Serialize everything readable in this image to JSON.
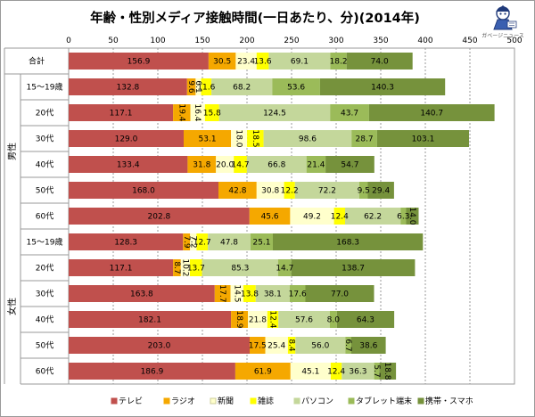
{
  "chart_data": {
    "type": "bar",
    "orientation": "horizontal",
    "stacked": true,
    "title": "年齢・性別メディア接触時間(一日あたり、分)(2014年)",
    "xlim": [
      0,
      500
    ],
    "x_ticks": [
      0,
      50,
      100,
      150,
      200,
      250,
      300,
      350,
      400,
      450,
      500
    ],
    "grid": true,
    "legend_position": "bottom",
    "groups": [
      {
        "label": "男性",
        "first_index": 1,
        "last_index": 6
      },
      {
        "label": "女性",
        "first_index": 7,
        "last_index": 12
      }
    ],
    "categories": [
      "合計",
      "15〜19歳",
      "20代",
      "30代",
      "40代",
      "50代",
      "60代",
      "15〜19歳",
      "20代",
      "30代",
      "40代",
      "50代",
      "60代"
    ],
    "series": [
      {
        "name": "テレビ",
        "color": "#c0504d",
        "values": [
          156.9,
          132.8,
          117.1,
          129.0,
          133.4,
          168.0,
          202.8,
          128.3,
          117.1,
          163.8,
          182.1,
          203.0,
          186.9
        ]
      },
      {
        "name": "ラジオ",
        "color": "#f5a800",
        "values": [
          30.5,
          9.6,
          19.4,
          53.1,
          31.8,
          42.8,
          45.6,
          7.9,
          8.7,
          17.7,
          18.9,
          17.5,
          61.9
        ]
      },
      {
        "name": "新聞",
        "color": "#ffffcc",
        "values": [
          23.4,
          6.1,
          16.4,
          18.0,
          20.0,
          30.8,
          49.2,
          7.2,
          10.2,
          14.5,
          21.8,
          25.4,
          45.1
        ]
      },
      {
        "name": "雑誌",
        "color": "#ffff00",
        "values": [
          13.6,
          11.6,
          15.8,
          18.5,
          14.7,
          12.2,
          12.4,
          12.7,
          13.7,
          13.8,
          12.4,
          8.4,
          12.4
        ]
      },
      {
        "name": "パソコン",
        "color": "#c4d79b",
        "values": [
          69.1,
          68.2,
          124.5,
          98.6,
          66.8,
          72.2,
          62.2,
          47.8,
          85.3,
          38.1,
          57.6,
          56.0,
          36.3
        ]
      },
      {
        "name": "タブレット端末",
        "color": "#9bbb59",
        "values": [
          18.2,
          53.6,
          43.7,
          28.7,
          21.4,
          9.5,
          6.3,
          25.1,
          14.7,
          17.6,
          8.0,
          6.7,
          5.7
        ]
      },
      {
        "name": "携帯・スマホ",
        "color": "#76923c",
        "values": [
          74.0,
          140.3,
          140.7,
          103.1,
          54.7,
          29.4,
          14.0,
          168.3,
          138.7,
          77.0,
          64.3,
          38.6,
          18.8
        ]
      }
    ],
    "data_labels": [
      [
        "156.9",
        "30.5",
        "23.4",
        "13.6",
        "69.1",
        "18.2",
        "74.0"
      ],
      [
        "132.8",
        "9.6",
        "6.1",
        "11.6",
        "68.2",
        "53.6",
        "140.3"
      ],
      [
        "117.1",
        "19.4",
        "16.4",
        "15.8",
        "124.5",
        "43.7",
        "140.7"
      ],
      [
        "129.0",
        "53.1",
        "18.0",
        "18.5",
        "98.6",
        "28.7",
        "103.1"
      ],
      [
        "133.4",
        "31.8",
        "20.0",
        "14.7",
        "66.8",
        "21.4",
        "54.7"
      ],
      [
        "168.0",
        "42.8",
        "30.8",
        "12.2",
        "72.2",
        "9.5",
        "29.4"
      ],
      [
        "202.8",
        "45.6",
        "49.2",
        "12.4",
        "62.2",
        "6.3",
        "14.0"
      ],
      [
        "128.3",
        "7.9",
        "7.2",
        "12.7",
        "47.8",
        "25.1",
        "168.3"
      ],
      [
        "117.1",
        "8.7",
        "10.2",
        "13.7",
        "85.3",
        "14.7",
        "138.7"
      ],
      [
        "163.8",
        "17.7",
        "14.5",
        "13.8",
        "38.1",
        "17.6",
        "77.0"
      ],
      [
        "182.1",
        "18.9",
        "21.8",
        "12.4",
        "57.6",
        "8.0",
        "64.3"
      ],
      [
        "203.0",
        "17.5",
        "25.4",
        "8.4",
        "56.0",
        "6.7",
        "38.6"
      ],
      [
        "186.9",
        "61.9",
        "45.1",
        "12.4",
        "36.3",
        "5.7",
        "18.8"
      ]
    ],
    "rotated_labels": [
      [
        false,
        false,
        false,
        false,
        false,
        false,
        false
      ],
      [
        false,
        true,
        true,
        false,
        false,
        false,
        false
      ],
      [
        false,
        true,
        true,
        false,
        false,
        false,
        false
      ],
      [
        false,
        false,
        true,
        true,
        false,
        false,
        false
      ],
      [
        false,
        false,
        false,
        false,
        false,
        false,
        false
      ],
      [
        false,
        false,
        false,
        false,
        false,
        false,
        false
      ],
      [
        false,
        false,
        false,
        false,
        false,
        false,
        true
      ],
      [
        false,
        true,
        true,
        false,
        false,
        false,
        false
      ],
      [
        false,
        true,
        true,
        false,
        false,
        false,
        false
      ],
      [
        false,
        true,
        true,
        false,
        false,
        false,
        false
      ],
      [
        false,
        true,
        false,
        true,
        false,
        false,
        false
      ],
      [
        false,
        false,
        false,
        true,
        false,
        true,
        false
      ],
      [
        false,
        false,
        false,
        false,
        false,
        true,
        true
      ]
    ]
  },
  "logo": {
    "name": "ガベージニュース",
    "icon": "reporter-mascot-icon"
  }
}
